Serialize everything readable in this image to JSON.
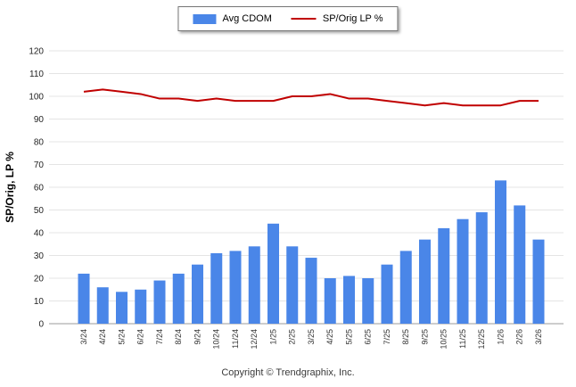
{
  "ylabel": "SP/Orig, LP %",
  "footer": "Copyright © Trendgraphix, Inc.",
  "colors": {
    "bar": "#4a86e8",
    "line": "#c00000",
    "grid": "#e4e4e4",
    "axis": "#9b9b9b"
  },
  "chart_data": {
    "type": "combo",
    "categories": [
      "3/24",
      "4/24",
      "5/24",
      "6/24",
      "7/24",
      "8/24",
      "9/24",
      "10/24",
      "11/24",
      "12/24",
      "1/25",
      "2/25",
      "3/25",
      "4/25",
      "5/25",
      "6/25",
      "7/25",
      "8/25",
      "9/25",
      "10/25",
      "11/25",
      "12/25",
      "1/26",
      "2/26",
      "3/26"
    ],
    "series": [
      {
        "name": "Avg CDOM",
        "chart_type": "bar",
        "values": [
          22,
          16,
          14,
          15,
          19,
          22,
          26,
          31,
          32,
          34,
          44,
          34,
          29,
          20,
          21,
          20,
          26,
          32,
          37,
          42,
          46,
          49,
          63,
          52,
          37
        ]
      },
      {
        "name": "SP/Orig LP %",
        "chart_type": "line",
        "values": [
          102,
          103,
          102,
          101,
          99,
          99,
          98,
          99,
          98,
          98,
          98,
          100,
          100,
          101,
          99,
          99,
          98,
          97,
          96,
          97,
          96,
          96,
          96,
          98,
          98
        ]
      }
    ],
    "title": "",
    "xlabel": "",
    "ylabel": "SP/Orig, LP %",
    "ylim": [
      0,
      120
    ],
    "ytick_step": 10,
    "grid": true,
    "legend_position": "top-center"
  }
}
